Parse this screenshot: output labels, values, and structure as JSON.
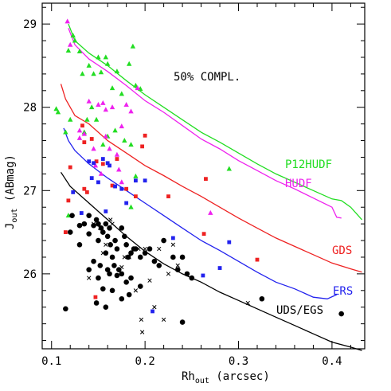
{
  "chart_data": {
    "type": "scatter",
    "title": "",
    "annotation": "50% COMPL.",
    "xlabel": "Rh",
    "xlabel_sub": "out",
    "xlabel_unit": "(arcsec)",
    "ylabel": "J",
    "ylabel_sub": "out",
    "ylabel_unit": "(ABmag)",
    "xlim": [
      0.09,
      0.435
    ],
    "ylim": [
      25.1,
      29.25
    ],
    "xticks": [
      0.1,
      0.2,
      0.3,
      0.4
    ],
    "xtick_labels": [
      "0.1",
      "0.2",
      "0.3",
      "0.4"
    ],
    "yticks": [
      26,
      27,
      28,
      29
    ],
    "ytick_labels": [
      "26",
      "27",
      "28",
      "29"
    ],
    "grid": false,
    "curves": [
      {
        "name": "P12HUDF",
        "color": "#22dd22",
        "x": [
          0.118,
          0.125,
          0.14,
          0.16,
          0.18,
          0.2,
          0.22,
          0.24,
          0.26,
          0.28,
          0.3,
          0.32,
          0.34,
          0.36,
          0.38,
          0.4,
          0.41,
          0.42,
          0.432
        ],
        "y": [
          29.0,
          28.8,
          28.65,
          28.5,
          28.32,
          28.15,
          28.0,
          27.85,
          27.7,
          27.58,
          27.45,
          27.32,
          27.2,
          27.1,
          27.0,
          26.9,
          26.88,
          26.8,
          26.65
        ]
      },
      {
        "name": "HUDF",
        "color": "#ee22ee",
        "x": [
          0.118,
          0.125,
          0.14,
          0.16,
          0.18,
          0.2,
          0.22,
          0.24,
          0.26,
          0.28,
          0.3,
          0.32,
          0.34,
          0.36,
          0.38,
          0.4,
          0.405,
          0.41
        ],
        "y": [
          28.95,
          28.75,
          28.58,
          28.43,
          28.26,
          28.08,
          27.94,
          27.78,
          27.62,
          27.5,
          27.36,
          27.24,
          27.12,
          27.02,
          26.91,
          26.8,
          26.68,
          26.67
        ]
      },
      {
        "name": "GDS",
        "color": "#ee2222",
        "x": [
          0.11,
          0.115,
          0.125,
          0.14,
          0.16,
          0.18,
          0.2,
          0.22,
          0.24,
          0.26,
          0.28,
          0.3,
          0.32,
          0.34,
          0.36,
          0.38,
          0.4,
          0.42,
          0.432
        ],
        "y": [
          28.28,
          28.1,
          27.9,
          27.8,
          27.6,
          27.45,
          27.3,
          27.18,
          27.05,
          26.93,
          26.8,
          26.67,
          26.55,
          26.43,
          26.33,
          26.23,
          26.13,
          26.06,
          26.02
        ]
      },
      {
        "name": "ERS",
        "color": "#2222ee",
        "x": [
          0.113,
          0.118,
          0.125,
          0.14,
          0.16,
          0.18,
          0.2,
          0.22,
          0.24,
          0.26,
          0.28,
          0.3,
          0.32,
          0.34,
          0.36,
          0.38,
          0.395,
          0.405
        ],
        "y": [
          27.75,
          27.6,
          27.48,
          27.32,
          27.15,
          27.0,
          26.85,
          26.7,
          26.55,
          26.4,
          26.28,
          26.15,
          26.02,
          25.9,
          25.82,
          25.72,
          25.7,
          25.75
        ]
      },
      {
        "name": "UDS/EGS",
        "color": "#000000",
        "x": [
          0.11,
          0.12,
          0.14,
          0.16,
          0.18,
          0.2,
          0.22,
          0.24,
          0.26,
          0.28,
          0.3,
          0.32,
          0.34,
          0.36,
          0.38,
          0.4,
          0.42,
          0.432
        ],
        "y": [
          27.22,
          27.05,
          26.85,
          26.65,
          26.45,
          26.27,
          26.12,
          26.0,
          25.9,
          25.78,
          25.68,
          25.58,
          25.48,
          25.38,
          25.28,
          25.18,
          25.12,
          25.08
        ]
      }
    ],
    "curve_labels": [
      {
        "text": "P12HUDF",
        "color": "#22dd22"
      },
      {
        "text": "HUDF",
        "color": "#ee22ee"
      },
      {
        "text": "GDS",
        "color": "#ee2222"
      },
      {
        "text": "ERS",
        "color": "#2222ee"
      },
      {
        "text": "UDS/EGS",
        "color": "#000000"
      }
    ],
    "points": [
      {
        "marker": "triangle",
        "color": "#22dd22",
        "x": [
          0.105,
          0.107,
          0.118,
          0.123,
          0.125,
          0.13,
          0.133,
          0.14,
          0.145,
          0.15,
          0.153,
          0.158,
          0.16,
          0.165,
          0.17,
          0.175,
          0.183,
          0.187,
          0.19,
          0.195,
          0.115,
          0.12,
          0.135,
          0.143,
          0.155,
          0.178,
          0.168,
          0.138,
          0.148,
          0.16,
          0.185,
          0.29,
          0.19,
          0.118,
          0.185
        ],
        "y": [
          27.98,
          27.94,
          28.68,
          28.86,
          28.8,
          28.67,
          28.4,
          28.5,
          28.4,
          28.6,
          28.42,
          28.6,
          28.52,
          28.23,
          28.43,
          28.16,
          28.52,
          28.73,
          28.26,
          28.22,
          27.7,
          27.85,
          27.7,
          28.0,
          27.55,
          27.6,
          27.72,
          27.85,
          27.85,
          27.65,
          27.55,
          27.26,
          27.17,
          26.7,
          26.8
        ]
      },
      {
        "marker": "triangle",
        "color": "#ee22ee",
        "x": [
          0.117,
          0.12,
          0.13,
          0.135,
          0.14,
          0.15,
          0.155,
          0.158,
          0.165,
          0.17,
          0.175,
          0.18,
          0.185,
          0.147,
          0.162,
          0.172,
          0.13,
          0.158,
          0.145,
          0.153,
          0.175,
          0.27,
          0.192
        ],
        "y": [
          29.03,
          28.75,
          27.72,
          27.68,
          28.07,
          28.03,
          28.05,
          27.97,
          28.0,
          27.43,
          27.77,
          28.03,
          27.95,
          27.3,
          27.5,
          27.25,
          27.63,
          27.65,
          27.5,
          27.2,
          27.1,
          26.73,
          28.23
        ]
      },
      {
        "marker": "square",
        "color": "#ee2222",
        "x": [
          0.115,
          0.12,
          0.133,
          0.135,
          0.143,
          0.138,
          0.155,
          0.165,
          0.18,
          0.19,
          0.2,
          0.197,
          0.225,
          0.265,
          0.263,
          0.32,
          0.135,
          0.148,
          0.147,
          0.17,
          0.118
        ],
        "y": [
          26.5,
          27.28,
          27.78,
          27.58,
          27.62,
          26.98,
          27.32,
          27.06,
          27.02,
          26.93,
          27.66,
          27.53,
          26.93,
          27.14,
          26.48,
          26.17,
          27.02,
          27.35,
          25.72,
          27.38,
          26.88
        ]
      },
      {
        "marker": "square",
        "color": "#2222ee",
        "x": [
          0.123,
          0.132,
          0.14,
          0.143,
          0.145,
          0.15,
          0.155,
          0.16,
          0.162,
          0.168,
          0.175,
          0.18,
          0.19,
          0.2,
          0.23,
          0.262,
          0.29,
          0.28,
          0.208,
          0.158
        ],
        "y": [
          26.98,
          26.73,
          27.35,
          27.15,
          27.33,
          27.1,
          27.38,
          27.33,
          27.3,
          27.05,
          27.02,
          26.85,
          27.12,
          27.12,
          26.43,
          25.98,
          26.38,
          26.07,
          25.55,
          26.75
        ]
      },
      {
        "marker": "dot",
        "color": "#000000",
        "x": [
          0.115,
          0.12,
          0.13,
          0.135,
          0.14,
          0.145,
          0.148,
          0.15,
          0.153,
          0.155,
          0.158,
          0.16,
          0.162,
          0.163,
          0.165,
          0.167,
          0.17,
          0.172,
          0.175,
          0.178,
          0.18,
          0.182,
          0.185,
          0.188,
          0.19,
          0.195,
          0.2,
          0.205,
          0.21,
          0.215,
          0.22,
          0.23,
          0.235,
          0.24,
          0.245,
          0.25,
          0.325,
          0.41,
          0.14,
          0.145,
          0.15,
          0.155,
          0.16,
          0.165,
          0.17,
          0.175,
          0.18,
          0.185,
          0.122,
          0.13,
          0.148,
          0.152,
          0.158,
          0.162,
          0.168,
          0.175,
          0.183,
          0.195,
          0.24,
          0.158,
          0.15,
          0.14
        ],
        "y": [
          25.58,
          26.5,
          26.58,
          26.6,
          26.48,
          26.58,
          26.65,
          26.6,
          26.55,
          26.5,
          26.6,
          26.45,
          26.55,
          26.35,
          26.2,
          26.1,
          26.3,
          26.05,
          26.55,
          26.45,
          26.35,
          26.2,
          26.25,
          26.3,
          26.3,
          26.2,
          26.25,
          26.3,
          26.15,
          26.1,
          26.4,
          26.2,
          26.05,
          26.2,
          26.0,
          25.95,
          25.7,
          25.52,
          26.7,
          26.15,
          25.95,
          25.82,
          26.05,
          25.8,
          25.98,
          25.7,
          25.9,
          25.95,
          26.7,
          26.35,
          25.65,
          26.1,
          25.6,
          26.0,
          26.4,
          26.0,
          25.75,
          25.85,
          25.42,
          26.25,
          26.4,
          26.05
        ]
      },
      {
        "marker": "cross",
        "color": "#000000",
        "x": [
          0.14,
          0.152,
          0.163,
          0.165,
          0.155,
          0.158,
          0.175,
          0.183,
          0.193,
          0.2,
          0.205,
          0.21,
          0.215,
          0.22,
          0.225,
          0.23,
          0.235,
          0.19,
          0.196,
          0.197,
          0.31,
          0.145,
          0.178
        ],
        "y": [
          25.95,
          26.55,
          26.65,
          26.6,
          26.25,
          26.35,
          26.08,
          26.2,
          26.3,
          26.3,
          25.92,
          25.6,
          26.3,
          25.45,
          26.0,
          26.35,
          26.1,
          25.8,
          25.45,
          25.3,
          25.65,
          26.6,
          26.2
        ]
      }
    ]
  }
}
